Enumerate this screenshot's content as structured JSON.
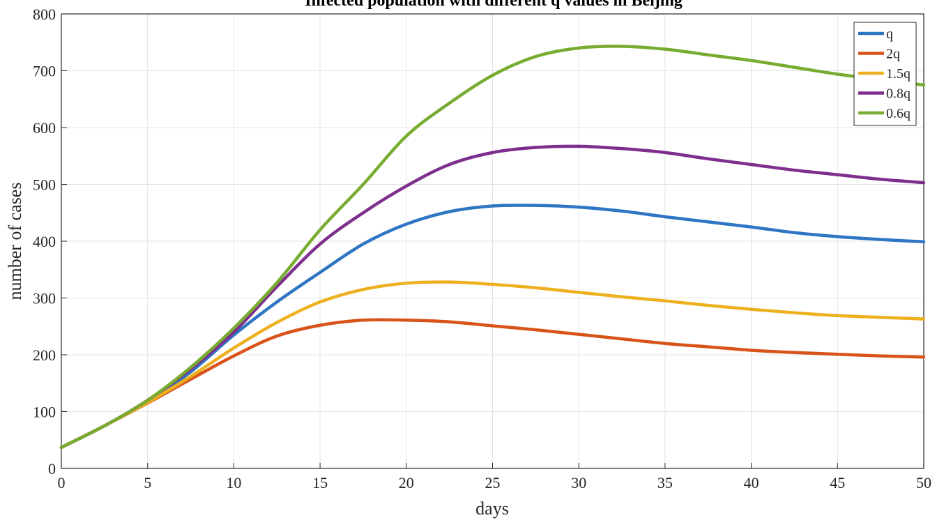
{
  "chart_data": {
    "type": "line",
    "title": "Infected population with different q values in Beijing",
    "xlabel": "days",
    "ylabel": "number of cases",
    "xlim": [
      0,
      50
    ],
    "ylim": [
      0,
      800
    ],
    "xticks": [
      "0",
      "5",
      "10",
      "15",
      "20",
      "25",
      "30",
      "35",
      "40",
      "45",
      "50"
    ],
    "yticks": [
      "0",
      "100",
      "200",
      "300",
      "400",
      "500",
      "600",
      "700",
      "800"
    ],
    "grid": true,
    "legend_position": "top-right",
    "x": [
      0,
      2.5,
      5,
      7.5,
      10,
      12.5,
      15,
      17.5,
      20,
      22.5,
      25,
      27.5,
      30,
      32.5,
      35,
      37.5,
      40,
      42.5,
      45,
      47.5,
      50
    ],
    "series": [
      {
        "name": "q",
        "color": "#2E75C4",
        "values": [
          37,
          75,
          118,
          170,
          235,
          293,
          345,
          395,
          430,
          452,
          462,
          463,
          460,
          453,
          443,
          434,
          425,
          415,
          408,
          403,
          399
        ]
      },
      {
        "name": "2q",
        "color": "#D95319",
        "values": [
          37,
          75,
          115,
          157,
          198,
          233,
          252,
          261,
          261,
          258,
          251,
          244,
          236,
          228,
          220,
          214,
          208,
          204,
          201,
          198,
          196
        ]
      },
      {
        "name": "1.5q",
        "color": "#EDB120",
        "values": [
          37,
          75,
          116,
          162,
          212,
          257,
          293,
          315,
          326,
          328,
          324,
          318,
          310,
          302,
          295,
          287,
          280,
          274,
          269,
          266,
          263
        ]
      },
      {
        "name": "0.8q",
        "color": "#7E2F8E",
        "values": [
          37,
          75,
          120,
          175,
          240,
          320,
          395,
          450,
          497,
          535,
          556,
          565,
          567,
          563,
          556,
          545,
          535,
          525,
          517,
          509,
          503
        ]
      },
      {
        "name": "0.6q",
        "color": "#77AC30",
        "values": [
          37,
          75,
          120,
          178,
          247,
          327,
          420,
          500,
          585,
          643,
          692,
          725,
          740,
          743,
          738,
          728,
          718,
          706,
          694,
          684,
          675
        ]
      }
    ]
  }
}
